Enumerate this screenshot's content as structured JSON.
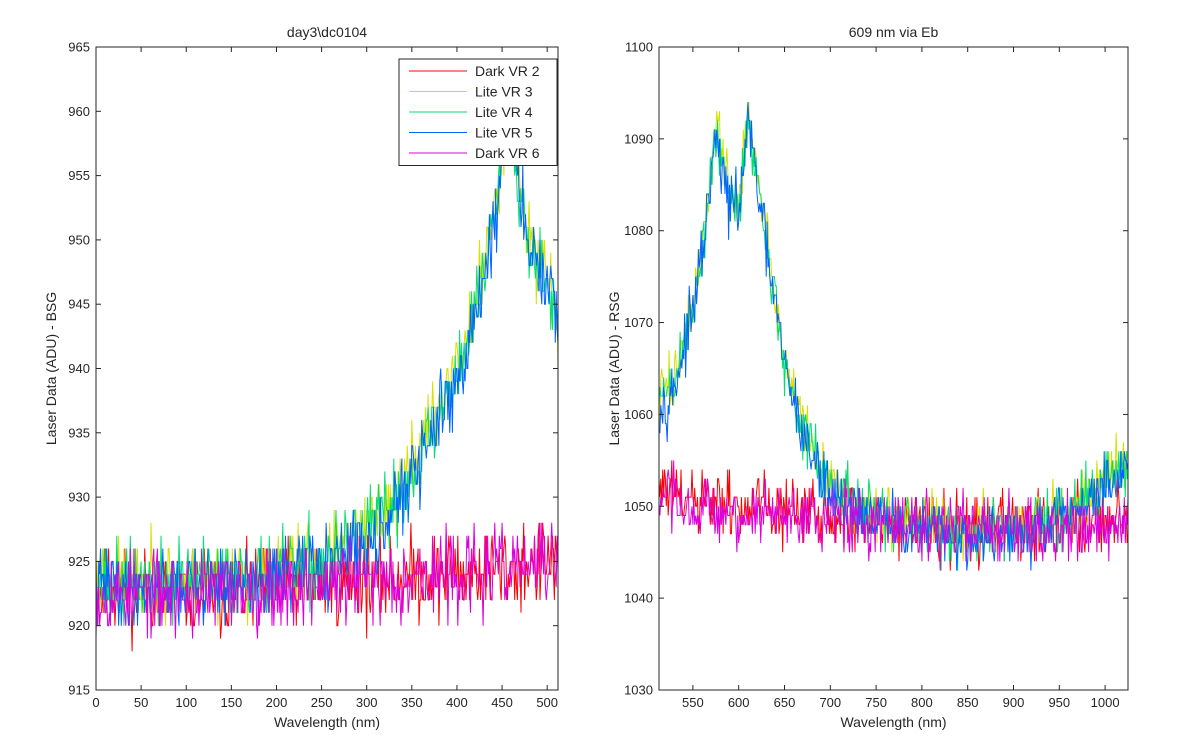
{
  "figure": {
    "background": "#ffffff"
  },
  "chart_data": [
    {
      "type": "line",
      "title": "day3\\dc0104",
      "xlabel": "Wavelength (nm)",
      "ylabel": "Laser Data (ADU) - BSG",
      "xlim": [
        0,
        512
      ],
      "ylim": [
        915,
        965
      ],
      "xticks": [
        0,
        50,
        100,
        150,
        200,
        250,
        300,
        350,
        400,
        450,
        500
      ],
      "yticks": [
        915,
        920,
        925,
        930,
        935,
        940,
        945,
        950,
        955,
        960,
        965
      ],
      "grid": false,
      "legend": {
        "position": "top-right",
        "entries": [
          "Dark VR 2",
          "Lite VR 3",
          "Lite VR 4",
          "Lite VR 5",
          "Dark VR 6"
        ]
      },
      "series": [
        {
          "name": "Dark VR 2",
          "color": "#ff0000",
          "x_range": [
            0,
            512
          ],
          "profile": [
            [
              0,
              923
            ],
            [
              100,
              922.5
            ],
            [
              200,
              923
            ],
            [
              300,
              923.5
            ],
            [
              400,
              924
            ],
            [
              512,
              925
            ]
          ],
          "noise": 1.6,
          "seed": 11
        },
        {
          "name": "Lite VR 3",
          "color": "#d8e000",
          "x_range": [
            0,
            512
          ],
          "profile": [
            [
              0,
              923.5
            ],
            [
              100,
              923.5
            ],
            [
              200,
              924
            ],
            [
              250,
              925
            ],
            [
              300,
              927
            ],
            [
              340,
              931
            ],
            [
              380,
              937
            ],
            [
              410,
              942
            ],
            [
              430,
              948
            ],
            [
              445,
              954
            ],
            [
              455,
              960
            ],
            [
              465,
              957
            ],
            [
              480,
              950
            ],
            [
              500,
              948
            ],
            [
              512,
              943
            ]
          ],
          "noise": 1.5,
          "seed": 23
        },
        {
          "name": "Lite VR 4",
          "color": "#00e070",
          "x_range": [
            0,
            512
          ],
          "profile": [
            [
              0,
              923.5
            ],
            [
              100,
              923.5
            ],
            [
              200,
              924
            ],
            [
              250,
              925
            ],
            [
              300,
              927
            ],
            [
              340,
              930.5
            ],
            [
              380,
              936.5
            ],
            [
              410,
              941.5
            ],
            [
              430,
              947.5
            ],
            [
              445,
              953.5
            ],
            [
              455,
              959.5
            ],
            [
              465,
              956.5
            ],
            [
              480,
              949.5
            ],
            [
              500,
              947.5
            ],
            [
              512,
              942.5
            ]
          ],
          "noise": 1.5,
          "seed": 37
        },
        {
          "name": "Lite VR 5",
          "color": "#0064ff",
          "x_range": [
            0,
            512
          ],
          "profile": [
            [
              0,
              923
            ],
            [
              100,
              923
            ],
            [
              200,
              923.5
            ],
            [
              250,
              924.5
            ],
            [
              300,
              926.5
            ],
            [
              340,
              930
            ],
            [
              380,
              936
            ],
            [
              410,
              941
            ],
            [
              430,
              947
            ],
            [
              445,
              953
            ],
            [
              455,
              959
            ],
            [
              465,
              956
            ],
            [
              480,
              949
            ],
            [
              500,
              947
            ],
            [
              512,
              942
            ]
          ],
          "noise": 1.5,
          "seed": 41
        },
        {
          "name": "Dark VR 6",
          "color": "#dd00dd",
          "x_range": [
            0,
            512
          ],
          "profile": [
            [
              0,
              922.5
            ],
            [
              100,
              922.5
            ],
            [
              200,
              923
            ],
            [
              300,
              923.5
            ],
            [
              400,
              924
            ],
            [
              512,
              925
            ]
          ],
          "noise": 1.6,
          "seed": 53
        }
      ]
    },
    {
      "type": "line",
      "title": "609 nm via Eb",
      "xlabel": "Wavelength (nm)",
      "ylabel": "Laser Data (ADU) - RSG",
      "xlim": [
        513,
        1025
      ],
      "ylim": [
        1030,
        1100
      ],
      "xticks": [
        550,
        600,
        650,
        700,
        750,
        800,
        850,
        900,
        950,
        1000
      ],
      "yticks": [
        1030,
        1040,
        1050,
        1060,
        1070,
        1080,
        1090,
        1100
      ],
      "grid": false,
      "series": [
        {
          "name": "Dark VR 2",
          "color": "#ff0000",
          "x_range": [
            513,
            1025
          ],
          "profile": [
            [
              513,
              1052
            ],
            [
              540,
              1050.5
            ],
            [
              600,
              1050
            ],
            [
              700,
              1049
            ],
            [
              800,
              1048
            ],
            [
              900,
              1048
            ],
            [
              1000,
              1048.5
            ],
            [
              1025,
              1049
            ]
          ],
          "noise": 1.8,
          "seed": 61
        },
        {
          "name": "Lite VR 3",
          "color": "#d8e000",
          "x_range": [
            513,
            1025
          ],
          "profile": [
            [
              513,
              1062
            ],
            [
              530,
              1064
            ],
            [
              550,
              1072
            ],
            [
              565,
              1082
            ],
            [
              575,
              1092
            ],
            [
              582,
              1087
            ],
            [
              590,
              1084
            ],
            [
              600,
              1082
            ],
            [
              610,
              1093
            ],
            [
              620,
              1086
            ],
            [
              635,
              1076
            ],
            [
              650,
              1066
            ],
            [
              670,
              1059
            ],
            [
              690,
              1054
            ],
            [
              720,
              1051
            ],
            [
              760,
              1049
            ],
            [
              850,
              1047.5
            ],
            [
              920,
              1048
            ],
            [
              960,
              1050
            ],
            [
              1000,
              1053
            ],
            [
              1025,
              1055
            ]
          ],
          "noise": 1.6,
          "seed": 73
        },
        {
          "name": "Lite VR 4",
          "color": "#00e070",
          "x_range": [
            513,
            1025
          ],
          "profile": [
            [
              513,
              1061.5
            ],
            [
              530,
              1063.5
            ],
            [
              550,
              1071.5
            ],
            [
              565,
              1081.5
            ],
            [
              575,
              1091
            ],
            [
              582,
              1086.5
            ],
            [
              590,
              1083.5
            ],
            [
              600,
              1082
            ],
            [
              610,
              1092.5
            ],
            [
              620,
              1085.5
            ],
            [
              635,
              1075.5
            ],
            [
              650,
              1065.5
            ],
            [
              670,
              1058.5
            ],
            [
              690,
              1053.5
            ],
            [
              720,
              1050.5
            ],
            [
              760,
              1048.5
            ],
            [
              850,
              1047
            ],
            [
              920,
              1047.5
            ],
            [
              960,
              1049.5
            ],
            [
              1000,
              1052.5
            ],
            [
              1025,
              1054.5
            ]
          ],
          "noise": 1.6,
          "seed": 89
        },
        {
          "name": "Lite VR 5",
          "color": "#0064ff",
          "x_range": [
            513,
            1025
          ],
          "profile": [
            [
              513,
              1061
            ],
            [
              530,
              1063
            ],
            [
              550,
              1071
            ],
            [
              565,
              1081
            ],
            [
              575,
              1090
            ],
            [
              582,
              1086
            ],
            [
              590,
              1083
            ],
            [
              600,
              1082
            ],
            [
              610,
              1092
            ],
            [
              620,
              1085
            ],
            [
              635,
              1075
            ],
            [
              650,
              1065
            ],
            [
              670,
              1058
            ],
            [
              690,
              1053
            ],
            [
              720,
              1050
            ],
            [
              760,
              1048
            ],
            [
              850,
              1046.5
            ],
            [
              920,
              1047
            ],
            [
              960,
              1049
            ],
            [
              1000,
              1052
            ],
            [
              1025,
              1054
            ]
          ],
          "noise": 1.6,
          "seed": 97
        },
        {
          "name": "Dark VR 6",
          "color": "#dd00dd",
          "x_range": [
            513,
            1025
          ],
          "profile": [
            [
              513,
              1050.5
            ],
            [
              540,
              1049.5
            ],
            [
              600,
              1049
            ],
            [
              700,
              1048.5
            ],
            [
              800,
              1047.5
            ],
            [
              900,
              1047.5
            ],
            [
              1000,
              1048
            ],
            [
              1025,
              1048.5
            ]
          ],
          "noise": 1.8,
          "seed": 103
        }
      ]
    }
  ]
}
